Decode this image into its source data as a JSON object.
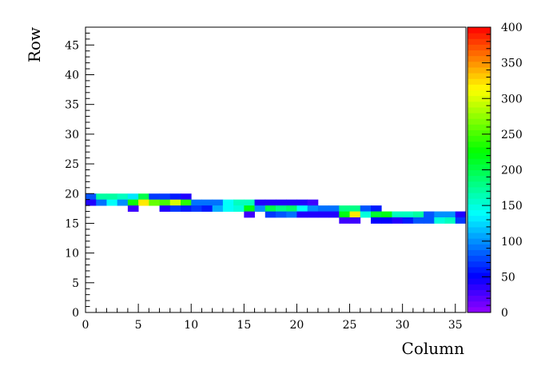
{
  "chart_data": {
    "type": "heatmap",
    "xlabel": "Column",
    "ylabel": "Row",
    "xlim": [
      0,
      36
    ],
    "ylim": [
      0,
      48
    ],
    "zlim": [
      0,
      400
    ],
    "x_ticks": [
      "0",
      "5",
      "10",
      "15",
      "20",
      "25",
      "30",
      "35"
    ],
    "y_ticks": [
      "0",
      "5",
      "10",
      "15",
      "20",
      "25",
      "30",
      "35",
      "40",
      "45"
    ],
    "z_ticks": [
      "0",
      "50",
      "100",
      "150",
      "200",
      "250",
      "300",
      "350",
      "400"
    ],
    "palette": "rainbow",
    "grid": false,
    "cells": [
      {
        "row": 19,
        "values": [
          [
            0,
            80
          ],
          [
            1,
            170
          ],
          [
            2,
            170
          ],
          [
            3,
            160
          ],
          [
            4,
            130
          ],
          [
            5,
            200
          ],
          [
            6,
            70
          ],
          [
            7,
            70
          ],
          [
            8,
            60
          ],
          [
            9,
            40
          ]
        ]
      },
      {
        "row": 18,
        "values": [
          [
            0,
            40
          ],
          [
            1,
            90
          ],
          [
            2,
            140
          ],
          [
            3,
            100
          ],
          [
            4,
            230
          ],
          [
            5,
            320
          ],
          [
            6,
            260
          ],
          [
            7,
            250
          ],
          [
            8,
            300
          ],
          [
            9,
            240
          ],
          [
            10,
            90
          ],
          [
            11,
            90
          ],
          [
            12,
            90
          ],
          [
            13,
            140
          ],
          [
            14,
            160
          ],
          [
            15,
            160
          ],
          [
            16,
            40
          ],
          [
            17,
            40
          ],
          [
            18,
            40
          ],
          [
            19,
            40
          ],
          [
            20,
            40
          ],
          [
            21,
            30
          ]
        ]
      },
      {
        "row": 17,
        "values": [
          [
            4,
            30
          ],
          [
            7,
            40
          ],
          [
            8,
            70
          ],
          [
            9,
            60
          ],
          [
            10,
            70
          ],
          [
            11,
            60
          ],
          [
            12,
            110
          ],
          [
            13,
            140
          ],
          [
            14,
            150
          ],
          [
            15,
            220
          ],
          [
            16,
            100
          ],
          [
            17,
            200
          ],
          [
            18,
            180
          ],
          [
            19,
            190
          ],
          [
            20,
            140
          ],
          [
            21,
            100
          ],
          [
            22,
            90
          ],
          [
            23,
            90
          ],
          [
            24,
            180
          ],
          [
            25,
            180
          ],
          [
            26,
            80
          ],
          [
            27,
            60
          ]
        ]
      },
      {
        "row": 16,
        "values": [
          [
            15,
            30
          ],
          [
            17,
            70
          ],
          [
            18,
            80
          ],
          [
            19,
            90
          ],
          [
            20,
            40
          ],
          [
            21,
            40
          ],
          [
            22,
            40
          ],
          [
            23,
            40
          ],
          [
            24,
            220
          ],
          [
            25,
            320
          ],
          [
            26,
            150
          ],
          [
            27,
            210
          ],
          [
            28,
            220
          ],
          [
            29,
            160
          ],
          [
            30,
            160
          ],
          [
            31,
            170
          ],
          [
            32,
            80
          ],
          [
            33,
            100
          ],
          [
            34,
            100
          ],
          [
            35,
            40
          ]
        ]
      },
      {
        "row": 15,
        "values": [
          [
            24,
            30
          ],
          [
            25,
            30
          ],
          [
            27,
            50
          ],
          [
            28,
            50
          ],
          [
            29,
            40
          ],
          [
            30,
            60
          ],
          [
            31,
            80
          ],
          [
            32,
            80
          ],
          [
            33,
            150
          ],
          [
            34,
            160
          ],
          [
            35,
            70
          ]
        ]
      }
    ]
  }
}
